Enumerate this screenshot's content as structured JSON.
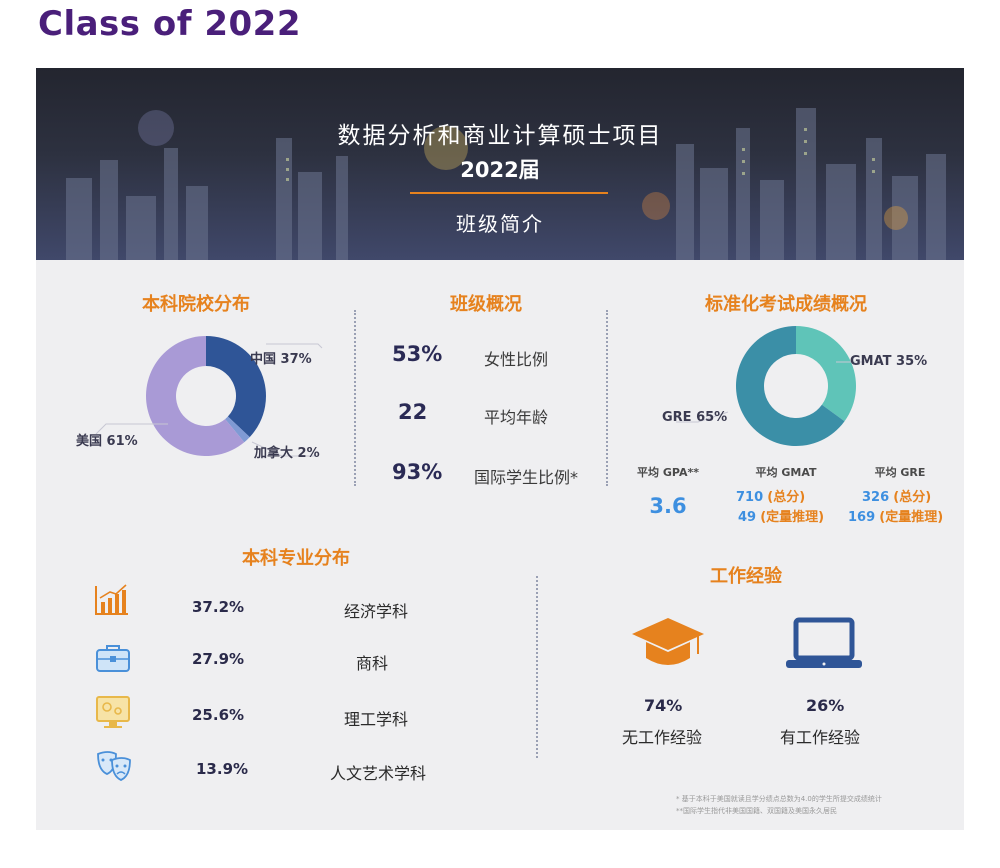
{
  "page_title": "Class of 2022",
  "banner": {
    "title": "数据分析和商业计算硕士项目",
    "year": "2022届",
    "subtitle": "班级简介"
  },
  "colors": {
    "accent_orange": "#e6821e",
    "title_purple": "#4a1f7a",
    "donut_blue": "#2f5597",
    "donut_lavender": "#a99ad6",
    "donut_teal": "#3b8fa7",
    "donut_aqua": "#5fc4b8",
    "value_blue": "#3d8fe0"
  },
  "undergrad": {
    "title": "本科院校分布",
    "labels": {
      "china": "中国 37%",
      "canada": "加拿大 2%",
      "usa": "美国 61%"
    }
  },
  "class_overview": {
    "title": "班级概况",
    "stats": [
      {
        "value": "53%",
        "label": "女性比例"
      },
      {
        "value": "22",
        "label": "平均年龄"
      },
      {
        "value": "93%",
        "label": "国际学生比例*"
      }
    ]
  },
  "test_scores": {
    "title": "标准化考试成绩概况",
    "labels": {
      "gmat": "GMAT 35%",
      "gre": "GRE 65%"
    },
    "gpa": {
      "label": "平均 GPA**",
      "value": "3.6"
    },
    "gmat": {
      "label": "平均 GMAT",
      "total_num": "710",
      "total_tag": "(总分)",
      "quant_num": "49",
      "quant_tag": "(定量推理)"
    },
    "gre": {
      "label": "平均 GRE",
      "total_num": "326",
      "total_tag": "(总分)",
      "quant_num": "169",
      "quant_tag": "(定量推理)"
    }
  },
  "majors": {
    "title": "本科专业分布",
    "items": [
      {
        "pct": "37.2%",
        "label": "经济学科",
        "icon": "chart-growth-icon"
      },
      {
        "pct": "27.9%",
        "label": "商科",
        "icon": "briefcase-icon"
      },
      {
        "pct": "25.6%",
        "label": "理工学科",
        "icon": "science-screen-icon"
      },
      {
        "pct": "13.9%",
        "label": "人文艺术学科",
        "icon": "theater-masks-icon"
      }
    ]
  },
  "work": {
    "title": "工作经验",
    "no_exp": {
      "pct": "74%",
      "label": "无工作经验",
      "icon": "graduation-cap-icon"
    },
    "with_exp": {
      "pct": "26%",
      "label": "有工作经验",
      "icon": "laptop-icon"
    }
  },
  "footnotes": [
    "* 基于本科于美国就读且学分绩点总数为4.0的学生所提交成绩统计",
    "**国际学生指代非美国国籍、双国籍及美国永久居民"
  ],
  "chart_data": [
    {
      "type": "pie",
      "title": "本科院校分布",
      "categories": [
        "中国",
        "加拿大",
        "美国"
      ],
      "values": [
        37,
        2,
        61
      ],
      "colors": [
        "#2f5597",
        "#7f9ad4",
        "#a99ad6"
      ]
    },
    {
      "type": "pie",
      "title": "标准化考试成绩概况",
      "categories": [
        "GMAT",
        "GRE"
      ],
      "values": [
        35,
        65
      ],
      "colors": [
        "#5fc4b8",
        "#3b8fa7"
      ]
    }
  ]
}
